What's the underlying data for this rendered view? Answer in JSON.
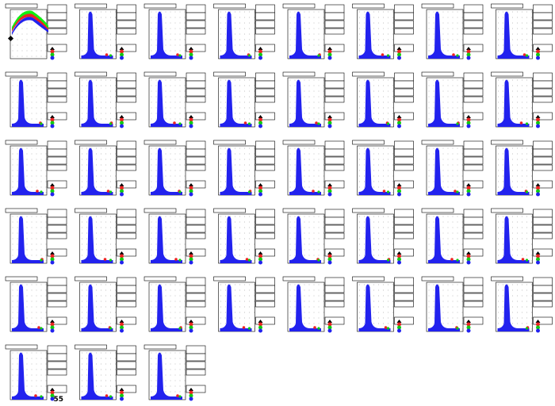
{
  "footer_label": "55"
}
